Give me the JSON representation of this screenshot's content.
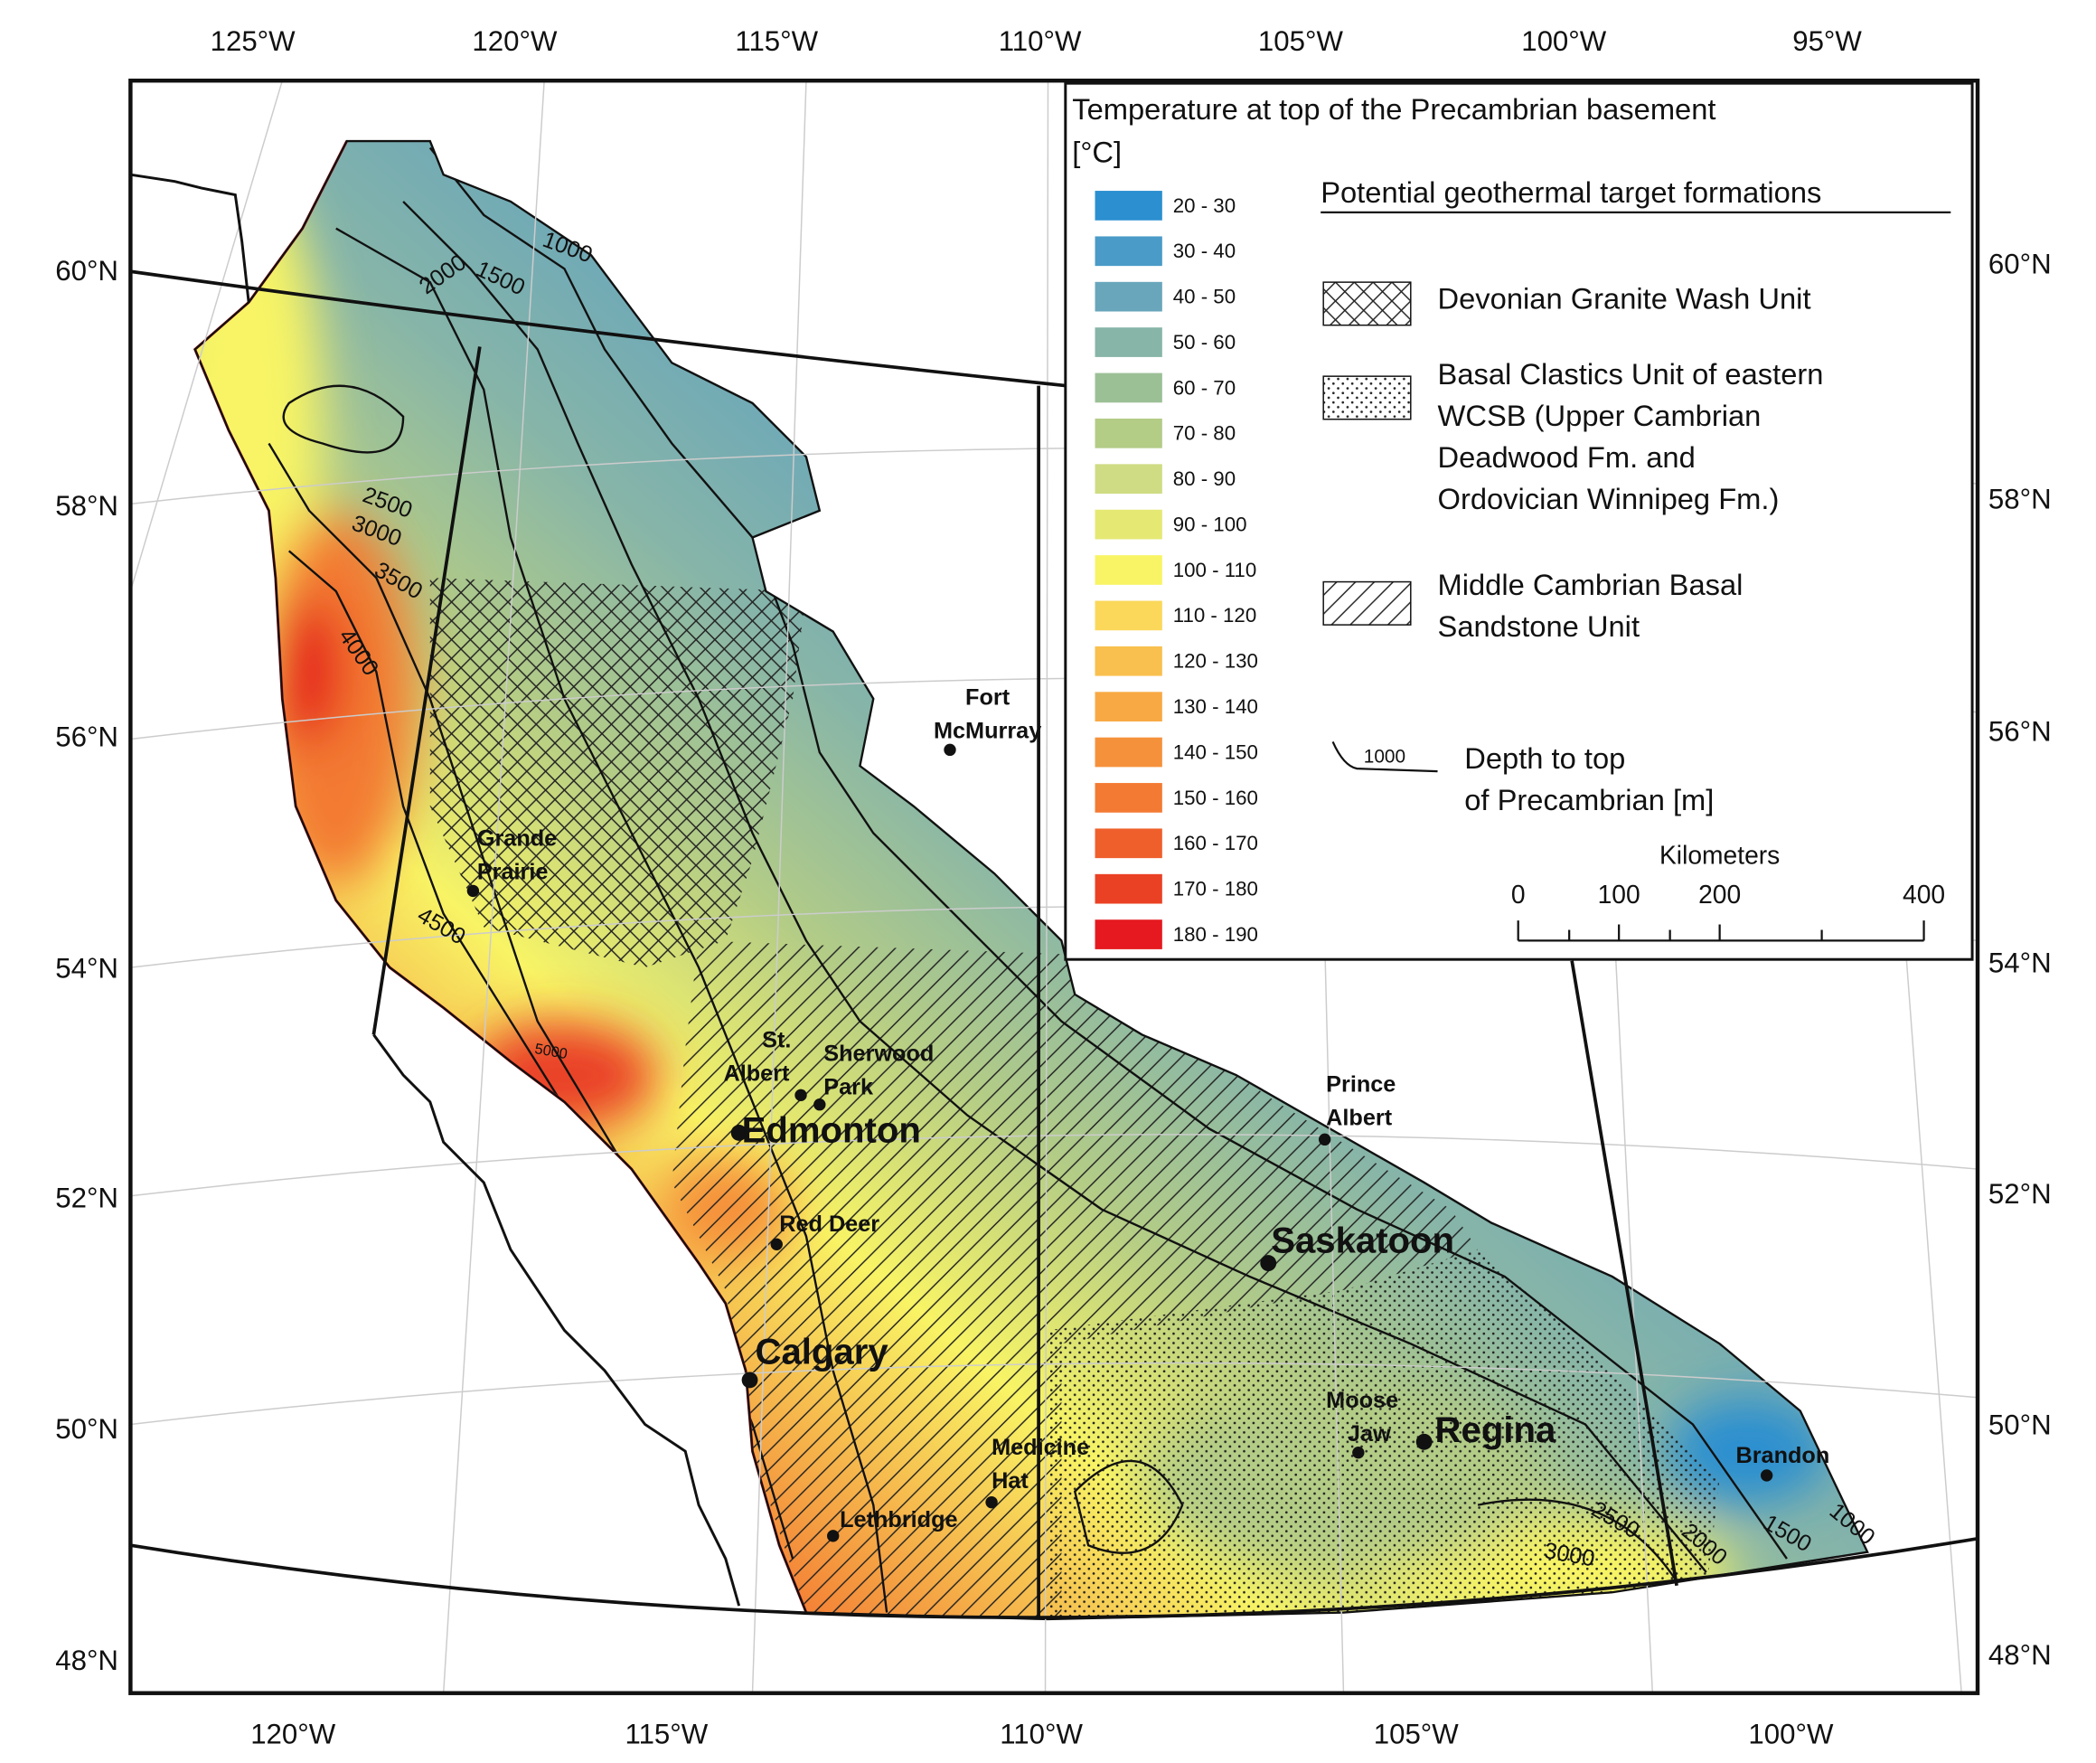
{
  "map": {
    "top_lon_labels": [
      "125°W",
      "120°W",
      "115°W",
      "110°W",
      "105°W",
      "100°W",
      "95°W"
    ],
    "bottom_lon_labels": [
      "120°W",
      "115°W",
      "110°W",
      "105°W",
      "100°W"
    ],
    "left_lat_labels": [
      "60°N",
      "58°N",
      "56°N",
      "54°N",
      "52°N",
      "50°N",
      "48°N"
    ],
    "right_lat_labels": [
      "60°N",
      "58°N",
      "56°N",
      "54°N",
      "52°N",
      "50°N",
      "48°N"
    ],
    "cities": [
      {
        "lines": [
          "Fort",
          "McMurray"
        ]
      },
      {
        "lines": [
          "Grande",
          "Prairie"
        ]
      },
      {
        "lines": [
          "St.",
          "Albert"
        ]
      },
      {
        "lines": [
          "Sherwood",
          "Park"
        ]
      },
      {
        "lines": [
          "Edmonton"
        ]
      },
      {
        "lines": [
          "Red Deer"
        ]
      },
      {
        "lines": [
          "Calgary"
        ]
      },
      {
        "lines": [
          "Medicine",
          "Hat"
        ]
      },
      {
        "lines": [
          "Lethbridge"
        ]
      },
      {
        "lines": [
          "Prince",
          "Albert"
        ]
      },
      {
        "lines": [
          "Saskatoon"
        ]
      },
      {
        "lines": [
          "Moose",
          "Jaw"
        ]
      },
      {
        "lines": [
          "Regina"
        ]
      },
      {
        "lines": [
          "Brandon"
        ]
      }
    ],
    "contour_labels": [
      "1000",
      "1500",
      "2000",
      "2500",
      "3000",
      "3500",
      "4000",
      "4500",
      "5000",
      "3000",
      "2500",
      "2000",
      "1500",
      "1000"
    ]
  },
  "legend": {
    "title_lines": [
      "Temperature at top of the Precambrian basement",
      "[°C]"
    ],
    "classes": [
      {
        "label": "20 - 30",
        "color": "#2b8fd0"
      },
      {
        "label": "30 - 40",
        "color": "#4a9bc7"
      },
      {
        "label": "40 - 50",
        "color": "#69a6bb"
      },
      {
        "label": "50 - 60",
        "color": "#87b5a8"
      },
      {
        "label": "60 - 70",
        "color": "#9cc096"
      },
      {
        "label": "70 - 80",
        "color": "#b3cc86"
      },
      {
        "label": "80 - 90",
        "color": "#cfdc83"
      },
      {
        "label": "90 - 100",
        "color": "#e5e974"
      },
      {
        "label": "100 - 110",
        "color": "#f8f465"
      },
      {
        "label": "110 - 120",
        "color": "#fbd85a"
      },
      {
        "label": "120 - 130",
        "color": "#f9c04f"
      },
      {
        "label": "130 - 140",
        "color": "#f8a944"
      },
      {
        "label": "140 - 150",
        "color": "#f5913b"
      },
      {
        "label": "150 - 160",
        "color": "#f37a33"
      },
      {
        "label": "160 - 170",
        "color": "#ef5f2b"
      },
      {
        "label": "170 - 180",
        "color": "#ea4125"
      },
      {
        "label": "180 - 190",
        "color": "#e5191f"
      }
    ],
    "formations_title": "Potential geothermal target formations",
    "formations": [
      {
        "lines": [
          "Devonian Granite Wash Unit"
        ]
      },
      {
        "lines": [
          "Basal Clastics Unit of eastern",
          "WCSB (Upper Cambrian",
          "Deadwood Fm.  and",
          "Ordovician Winnipeg Fm.)"
        ]
      },
      {
        "lines": [
          "Middle Cambrian Basal",
          "Sandstone Unit"
        ]
      }
    ],
    "depth_sample": "1000",
    "depth_lines": [
      "Depth to top",
      "of Precambrian [m]"
    ],
    "scale_title": "Kilometers",
    "scale_labels": [
      "0",
      "100",
      "200",
      "400"
    ]
  }
}
